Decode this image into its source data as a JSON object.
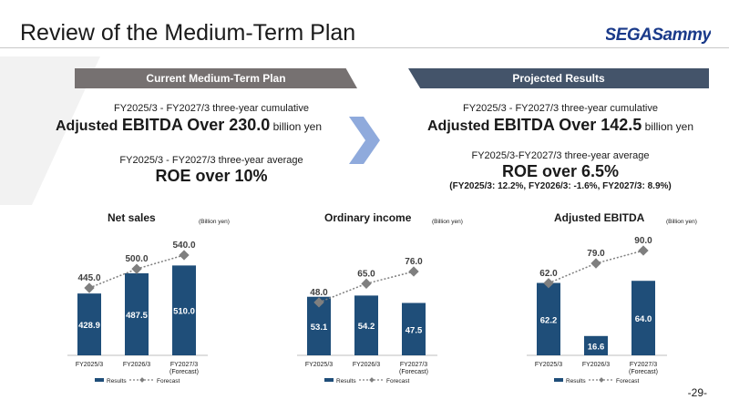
{
  "page": {
    "title": "Review of the Medium-Term Plan",
    "page_number": "-29-",
    "logo_text": "SEGASammy"
  },
  "left_panel": {
    "banner": "Current Medium-Term Plan",
    "line1": "FY2025/3 - FY2027/3 three-year cumulative",
    "ebitda_prefix": "Adjusted ",
    "ebitda_main": "EBITDA Over 230.0",
    "ebitda_unit": " billion yen",
    "line3": "FY2025/3 - FY2027/3 three-year average",
    "roe": "ROE over 10%"
  },
  "right_panel": {
    "banner": "Projected Results",
    "line1": "FY2025/3 - FY2027/3 three-year cumulative",
    "ebitda_prefix": "Adjusted ",
    "ebitda_main": "EBITDA Over 142.5",
    "ebitda_unit": " billion yen",
    "line3": "FY2025/3-FY2027/3 three-year average",
    "roe": "ROE over 6.5%",
    "roe_detail": "(FY2025/3: 12.2%, FY2026/3: -1.6%, FY2027/3: 8.9%)"
  },
  "colors": {
    "bar": "#1f4e79",
    "forecast": "#7f7f7f",
    "left_banner": "#767171",
    "right_banner": "#44546a",
    "chevron": "#8faadc"
  },
  "chart_data": [
    {
      "type": "bar",
      "title": "Net sales",
      "unit": "(Billion yen)",
      "categories": [
        "FY2025/3",
        "FY2026/3",
        "FY2027/3\n(Forecast)"
      ],
      "series": [
        {
          "name": "Results",
          "type": "bar",
          "values": [
            428.9,
            487.5,
            510.0
          ]
        },
        {
          "name": "Forecast",
          "type": "line",
          "values": [
            445.0,
            500.0,
            540.0
          ]
        }
      ],
      "legend": "bottom"
    },
    {
      "type": "bar",
      "title": "Ordinary income",
      "unit": "(Billion yen)",
      "categories": [
        "FY2025/3",
        "FY2026/3",
        "FY2027/3\n(Forecast)"
      ],
      "series": [
        {
          "name": "Results",
          "type": "bar",
          "values": [
            53.1,
            54.2,
            47.5
          ]
        },
        {
          "name": "Forecast",
          "type": "line",
          "values": [
            48.0,
            65.0,
            76.0
          ]
        }
      ],
      "legend": "bottom"
    },
    {
      "type": "bar",
      "title": "Adjusted EBITDA",
      "unit": "(Billion yen)",
      "categories": [
        "FY2025/3",
        "FY2026/3",
        "FY2027/3\n(Forecast)"
      ],
      "series": [
        {
          "name": "Results",
          "type": "bar",
          "values": [
            62.2,
            16.6,
            64.0
          ]
        },
        {
          "name": "Forecast",
          "type": "line",
          "values": [
            62.0,
            79.0,
            90.0
          ]
        }
      ],
      "legend": "bottom"
    }
  ]
}
